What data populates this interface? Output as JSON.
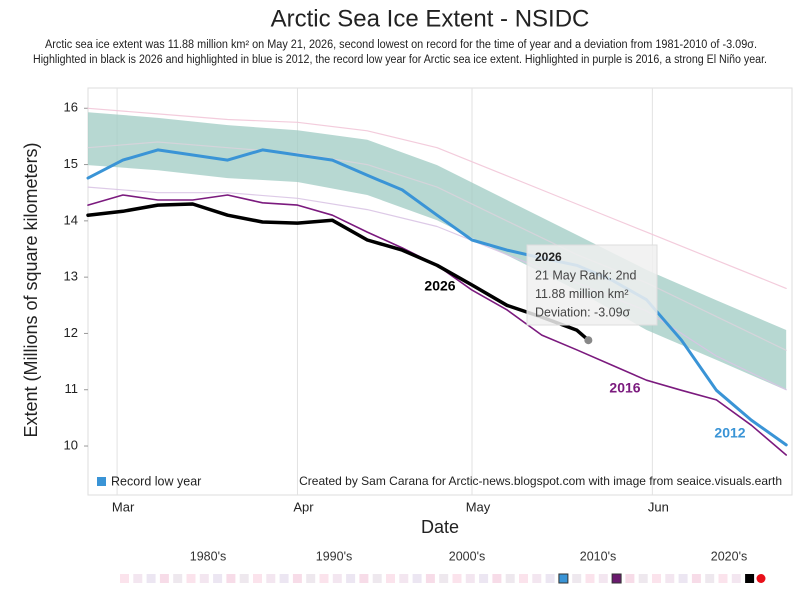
{
  "chart_data": {
    "type": "line",
    "title": "Arctic Sea Ice Extent - NSIDC",
    "subtitle": [
      "Arctic sea ice extent was 11.88 million km² on May 21, 2026, second lowest on record for the time of year and a deviation from 1981-2010 of -3.09σ.",
      "Highlighted in black is 2026 and highlighted in blue is 2012, the record low year for Arctic sea ice extent. Highlighted in purple is 2016, a strong El Niño year."
    ],
    "xlabel": "Date",
    "ylabel": "Extent (Millions of square kilometers)",
    "xlim": [
      55,
      176
    ],
    "xticks": [
      {
        "value": 60,
        "label": "Mar"
      },
      {
        "value": 91,
        "label": "Apr"
      },
      {
        "value": 121,
        "label": "May"
      },
      {
        "value": 152,
        "label": "Jun"
      }
    ],
    "ylim": [
      9.13,
      16.36
    ],
    "yticks": [
      10,
      11,
      12,
      13,
      14,
      15,
      16
    ],
    "x": [
      55,
      61,
      67,
      73,
      79,
      85,
      91,
      97,
      103,
      109,
      115,
      121,
      127,
      133,
      139,
      145,
      151,
      157,
      163,
      169,
      175
    ],
    "band": {
      "color": "#9fcbc3",
      "x": [
        55,
        67,
        79,
        91,
        103,
        115,
        127,
        139,
        151,
        163,
        175
      ],
      "upper": [
        15.93,
        15.83,
        15.7,
        15.61,
        15.44,
        14.99,
        14.37,
        13.75,
        13.13,
        12.59,
        12.06
      ],
      "lower": [
        14.99,
        14.9,
        14.76,
        14.69,
        14.46,
        14.01,
        13.39,
        12.77,
        12.06,
        11.53,
        10.99
      ]
    },
    "background_series": [
      {
        "color": "#f2c6d8",
        "x": [
          55,
          67,
          79,
          91,
          103,
          115,
          127,
          139,
          151,
          163,
          175
        ],
        "values": [
          16.0,
          15.9,
          15.8,
          15.75,
          15.6,
          15.3,
          14.8,
          14.3,
          13.8,
          13.3,
          12.8
        ]
      },
      {
        "color": "#d9c4e4",
        "x": [
          55,
          67,
          79,
          91,
          103,
          115,
          127,
          139,
          151,
          163,
          175
        ],
        "values": [
          14.6,
          14.5,
          14.5,
          14.4,
          14.2,
          13.9,
          13.4,
          12.9,
          12.4,
          11.6,
          11.0
        ]
      },
      {
        "color": "#d8d4dc",
        "x": [
          55,
          67,
          79,
          91,
          103,
          115,
          127,
          139,
          151,
          163,
          175
        ],
        "values": [
          15.3,
          15.4,
          15.3,
          15.2,
          15.0,
          14.6,
          14.0,
          13.4,
          12.9,
          12.3,
          11.7
        ]
      }
    ],
    "series": [
      {
        "name": "2016",
        "color": "#7b1a7e",
        "values": [
          14.28,
          14.46,
          14.37,
          14.37,
          14.46,
          14.32,
          14.28,
          14.1,
          13.8,
          13.52,
          13.21,
          12.77,
          12.42,
          11.97,
          11.71,
          11.44,
          11.17,
          10.99,
          10.82,
          10.37,
          9.84
        ]
      },
      {
        "name": "2012",
        "color": "#3a94d6",
        "values": [
          14.76,
          15.08,
          15.26,
          15.17,
          15.08,
          15.26,
          15.17,
          15.08,
          14.81,
          14.55,
          14.1,
          13.66,
          13.48,
          13.34,
          13.21,
          12.95,
          12.6,
          11.88,
          10.99,
          10.46,
          10.02
        ]
      },
      {
        "name": "2026",
        "color": "#000000",
        "x": [
          55,
          61,
          67,
          73,
          79,
          85,
          91,
          97,
          103,
          109,
          115,
          121,
          127,
          133,
          139,
          141
        ],
        "values": [
          14.1,
          14.17,
          14.28,
          14.3,
          14.1,
          13.98,
          13.96,
          14.01,
          13.66,
          13.48,
          13.21,
          12.86,
          12.5,
          12.29,
          12.06,
          11.88
        ]
      }
    ],
    "legend_label": "Record low year",
    "legend_color": "#3a94d6",
    "annotation": "Created by Sam Carana for Arctic-news.blogspot.com with image from  seaice.visuals.earth",
    "tooltip": {
      "title": "2026",
      "lines": [
        "21 May Rank: 2nd",
        "11.88 million km²",
        "Deviation: -3.09σ"
      ]
    },
    "decades": [
      "1980's",
      "1990's",
      "2000's",
      "2010's",
      "2020's"
    ]
  }
}
